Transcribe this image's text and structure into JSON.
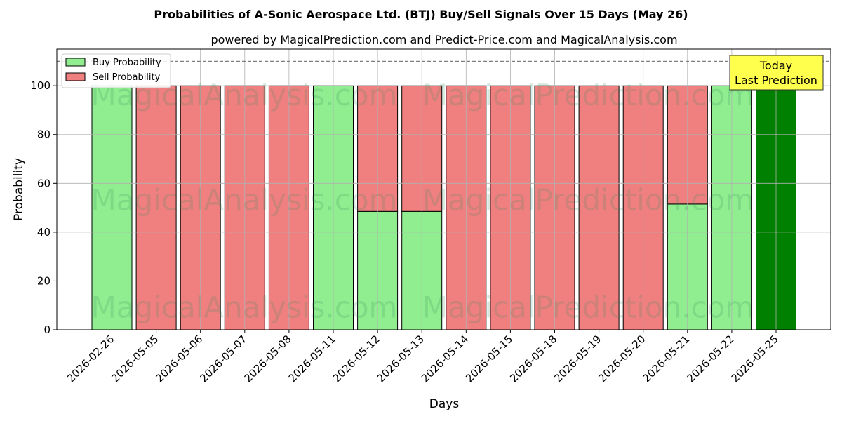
{
  "chart_data": {
    "type": "bar",
    "stacked": true,
    "title": "Probabilities of A-Sonic Aerospace Ltd. (BTJ) Buy/Sell Signals Over 15 Days (May 26)",
    "subtitle": "powered by MagicalPrediction.com and Predict-Price.com and MagicalAnalysis.com",
    "xlabel": "Days",
    "ylabel": "Probability",
    "ylim": [
      0,
      115
    ],
    "yticks": [
      0,
      20,
      40,
      60,
      80,
      100
    ],
    "grid": true,
    "legend_position": "top-left",
    "categories": [
      "2026-02-26",
      "2026-05-05",
      "2026-05-06",
      "2026-05-07",
      "2026-05-08",
      "2026-05-11",
      "2026-05-12",
      "2026-05-13",
      "2026-05-14",
      "2026-05-15",
      "2026-05-18",
      "2026-05-19",
      "2026-05-20",
      "2026-05-21",
      "2026-05-22",
      "2026-05-25"
    ],
    "series": [
      {
        "name": "Buy Probability",
        "color": "#90ee90",
        "values": [
          100,
          0,
          0,
          0,
          0,
          100,
          48.5,
          48.5,
          0,
          0,
          0,
          0,
          0,
          51.5,
          100,
          100
        ]
      },
      {
        "name": "Sell Probability",
        "color": "#f08080",
        "values": [
          0,
          100,
          100,
          100,
          100,
          0,
          51.5,
          51.5,
          100,
          100,
          100,
          100,
          100,
          48.5,
          0,
          0
        ]
      }
    ],
    "highlight_color": "#008000",
    "reference_line": 110,
    "annotation": {
      "lines": [
        "Today",
        "Last Prediction"
      ],
      "color": "#ffff4d"
    },
    "watermarks": [
      "MagicalAnalysis.com",
      "MagicalPrediction.com"
    ]
  }
}
